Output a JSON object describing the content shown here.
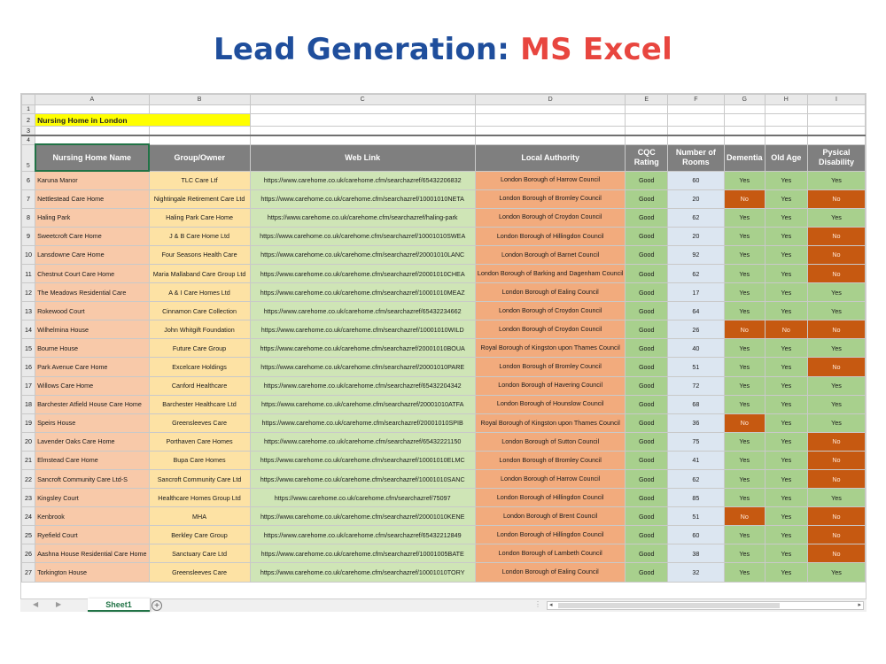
{
  "banner": {
    "part1": "Lead Generation: ",
    "part2": "MS Excel"
  },
  "colors": {
    "banner_blue": "#1f4e9c",
    "banner_red": "#e8463f",
    "excel_green": "#217346",
    "no_cell": "#c65911",
    "yes_cell": "#a8d08d"
  },
  "sheet": {
    "columns": [
      "A",
      "B",
      "C",
      "D",
      "E",
      "F",
      "G",
      "H",
      "I"
    ],
    "title_row": 2,
    "title": "Nursing Home in London",
    "header_row": 5,
    "headers": [
      "Nursing Home Name",
      "Group/Owner",
      "Web Link",
      "Local Authority",
      "CQC Rating",
      "Number of Rooms",
      "Dementia",
      "Old Age",
      "Pysical Disability"
    ],
    "rows": [
      {
        "n": 6,
        "name": "Karuna Manor",
        "group": "TLC Care Ltf",
        "web": "https://www.carehome.co.uk/carehome.cfm/searchazref/65432206832",
        "authority": "London Borough of Harrow Council",
        "cqc": "Good",
        "rooms": "60",
        "dementia": "Yes",
        "old_age": "Yes",
        "disability": "Yes"
      },
      {
        "n": 7,
        "name": "Nettlestead Care Home",
        "group": "Nightingale Retirement Care Ltd",
        "web": "https://www.carehome.co.uk/carehome.cfm/searchazref/10001010NETA",
        "authority": "London Borough of Bromley Council",
        "cqc": "Good",
        "rooms": "20",
        "dementia": "No",
        "old_age": "Yes",
        "disability": "No"
      },
      {
        "n": 8,
        "name": "Haling Park",
        "group": "Haling Park Care Home",
        "web": "https://www.carehome.co.uk/carehome.cfm/searchazref/haling-park",
        "authority": "London Borough of Croydon Council",
        "cqc": "Good",
        "rooms": "62",
        "dementia": "Yes",
        "old_age": "Yes",
        "disability": "Yes"
      },
      {
        "n": 9,
        "name": "Sweetcroft Care Home",
        "group": "J & B Care Home Ltd",
        "web": "https://www.carehome.co.uk/carehome.cfm/searchazref/10001010SWEA",
        "authority": "London Borough of Hillingdon Council",
        "cqc": "Good",
        "rooms": "20",
        "dementia": "Yes",
        "old_age": "Yes",
        "disability": "No"
      },
      {
        "n": 10,
        "name": "Lansdowne Care Home",
        "group": "Four Seasons Health Care",
        "web": "https://www.carehome.co.uk/carehome.cfm/searchazref/20001010LANC",
        "authority": "London Borough of Barnet Council",
        "cqc": "Good",
        "rooms": "92",
        "dementia": "Yes",
        "old_age": "Yes",
        "disability": "No"
      },
      {
        "n": 11,
        "name": "Chestnut Court Care Home",
        "group": "Maria Mallaband Care Group Ltd",
        "web": "https://www.carehome.co.uk/carehome.cfm/searchazref/20001010CHEA",
        "authority": "London Borough of Barking and Dagenham Council",
        "cqc": "Good",
        "rooms": "62",
        "dementia": "Yes",
        "old_age": "Yes",
        "disability": "No"
      },
      {
        "n": 12,
        "name": "The Meadows Residential Care",
        "group": "A & I Care Homes Ltd",
        "web": "https://www.carehome.co.uk/carehome.cfm/searchazref/10001010MEAZ",
        "authority": "London Borough of Ealing Council",
        "cqc": "Good",
        "rooms": "17",
        "dementia": "Yes",
        "old_age": "Yes",
        "disability": "Yes"
      },
      {
        "n": 13,
        "name": "Rokewood Court",
        "group": "Cinnamon Care Collection",
        "web": "https://www.carehome.co.uk/carehome.cfm/searchazref/65432234662",
        "authority": "London Borough of Croydon Council",
        "cqc": "Good",
        "rooms": "64",
        "dementia": "Yes",
        "old_age": "Yes",
        "disability": "Yes"
      },
      {
        "n": 14,
        "name": "Wilhelmina House",
        "group": "John Whitgift Foundation",
        "web": "https://www.carehome.co.uk/carehome.cfm/searchazref/10001010WILD",
        "authority": "London Borough of Croydon Council",
        "cqc": "Good",
        "rooms": "26",
        "dementia": "No",
        "old_age": "No",
        "disability": "No"
      },
      {
        "n": 15,
        "name": "Bourne House",
        "group": "Future Care Group",
        "web": "https://www.carehome.co.uk/carehome.cfm/searchazref/20001010BOUA",
        "authority": "Royal Borough of Kingston upon Thames Council",
        "cqc": "Good",
        "rooms": "40",
        "dementia": "Yes",
        "old_age": "Yes",
        "disability": "Yes"
      },
      {
        "n": 16,
        "name": "Park Avenue Care Home",
        "group": "Excelcare Holdings",
        "web": "https://www.carehome.co.uk/carehome.cfm/searchazref/20001010PARE",
        "authority": "London Borough of Bromley Council",
        "cqc": "Good",
        "rooms": "51",
        "dementia": "Yes",
        "old_age": "Yes",
        "disability": "No"
      },
      {
        "n": 17,
        "name": "Willows Care Home",
        "group": "Canford Healthcare",
        "web": "https://www.carehome.co.uk/carehome.cfm/searchazref/65432204342",
        "authority": "London Borough of Havering Council",
        "cqc": "Good",
        "rooms": "72",
        "dementia": "Yes",
        "old_age": "Yes",
        "disability": "Yes"
      },
      {
        "n": 18,
        "name": "Barchester Atfield House Care Home",
        "group": "Barchester Healthcare Ltd",
        "web": "https://www.carehome.co.uk/carehome.cfm/searchazref/20001010ATFA",
        "authority": "London Borough of Hounslow Council",
        "cqc": "Good",
        "rooms": "68",
        "dementia": "Yes",
        "old_age": "Yes",
        "disability": "Yes"
      },
      {
        "n": 19,
        "name": "Speirs House",
        "group": "Greensleeves Care",
        "web": "https://www.carehome.co.uk/carehome.cfm/searchazref/20001010SPIB",
        "authority": "Royal Borough of Kingston upon Thames Council",
        "cqc": "Good",
        "rooms": "36",
        "dementia": "No",
        "old_age": "Yes",
        "disability": "Yes"
      },
      {
        "n": 20,
        "name": "Lavender Oaks Care Home",
        "group": "Porthaven Care Homes",
        "web": "https://www.carehome.co.uk/carehome.cfm/searchazref/65432221150",
        "authority": "London Borough of Sutton Council",
        "cqc": "Good",
        "rooms": "75",
        "dementia": "Yes",
        "old_age": "Yes",
        "disability": "No"
      },
      {
        "n": 21,
        "name": "Elmstead Care Home",
        "group": "Bupa Care Homes",
        "web": "https://www.carehome.co.uk/carehome.cfm/searchazref/10001010ELMC",
        "authority": "London Borough of Bromley Council",
        "cqc": "Good",
        "rooms": "41",
        "dementia": "Yes",
        "old_age": "Yes",
        "disability": "No"
      },
      {
        "n": 22,
        "name": "Sancroft Community Care Ltd-S",
        "group": "Sancroft Community Care Ltd",
        "web": "https://www.carehome.co.uk/carehome.cfm/searchazref/10001010SANC",
        "authority": "London Borough of Harrow Council",
        "cqc": "Good",
        "rooms": "62",
        "dementia": "Yes",
        "old_age": "Yes",
        "disability": "No"
      },
      {
        "n": 23,
        "name": "Kingsley Court",
        "group": "Healthcare Homes Group Ltd",
        "web": "https://www.carehome.co.uk/carehome.cfm/searchazref/75097",
        "authority": "London Borough of Hillingdon Council",
        "cqc": "Good",
        "rooms": "85",
        "dementia": "Yes",
        "old_age": "Yes",
        "disability": "Yes"
      },
      {
        "n": 24,
        "name": "Kenbrook",
        "group": "MHA",
        "web": "https://www.carehome.co.uk/carehome.cfm/searchazref/20001010KENE",
        "authority": "London Borough of Brent Council",
        "cqc": "Good",
        "rooms": "51",
        "dementia": "No",
        "old_age": "Yes",
        "disability": "No"
      },
      {
        "n": 25,
        "name": "Ryefield Court",
        "group": "Berkley Care Group",
        "web": "https://www.carehome.co.uk/carehome.cfm/searchazref/65432212849",
        "authority": "London Borough of Hillingdon Council",
        "cqc": "Good",
        "rooms": "60",
        "dementia": "Yes",
        "old_age": "Yes",
        "disability": "No"
      },
      {
        "n": 26,
        "name": "Aashna House Residential Care Home",
        "group": "Sanctuary Care Ltd",
        "web": "https://www.carehome.co.uk/carehome.cfm/searchazref/10001005BATE",
        "authority": "London Borough of Lambeth Council",
        "cqc": "Good",
        "rooms": "38",
        "dementia": "Yes",
        "old_age": "Yes",
        "disability": "No"
      },
      {
        "n": 27,
        "name": "Torkington House",
        "group": "Greensleeves Care",
        "web": "https://www.carehome.co.uk/carehome.cfm/searchazref/10001010TORY",
        "authority": "London Borough of Ealing Council",
        "cqc": "Good",
        "rooms": "32",
        "dementia": "Yes",
        "old_age": "Yes",
        "disability": "Yes"
      }
    ]
  },
  "tabs": {
    "active_sheet": "Sheet1",
    "add_sheet_icon": "plus-circle-icon"
  }
}
